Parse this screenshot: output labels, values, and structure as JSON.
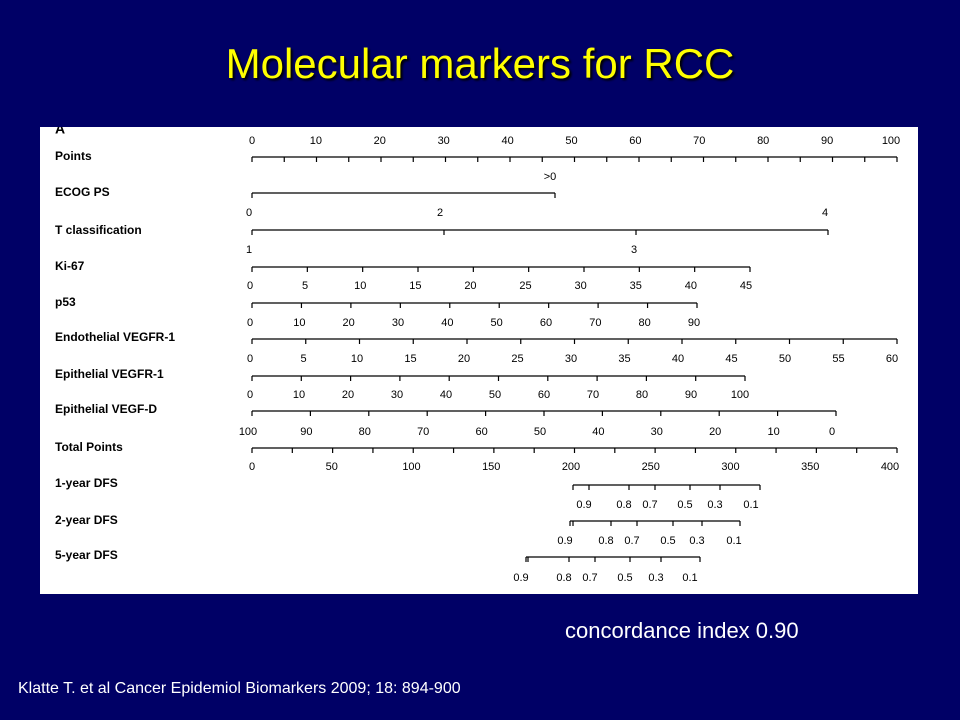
{
  "title": "Molecular markers for RCC",
  "figure": {
    "panel_letter": "A",
    "row_labels": [
      "Points",
      "ECOG PS",
      "T classification",
      "Ki-67",
      "p53",
      "Endothelial VEGFR-1",
      "Epithelial VEGFR-1",
      "Epithelial VEGF-D",
      "Total Points",
      "1-year DFS",
      "2-year DFS",
      "5-year DFS"
    ],
    "scale_labels": [
      [
        "0",
        "10",
        "20",
        "30",
        "40",
        "50",
        "60",
        "70",
        "80",
        "90",
        "100"
      ],
      [
        ">0"
      ],
      [
        "0",
        "2",
        "4"
      ],
      [
        "1",
        "3"
      ],
      [
        "0",
        "5",
        "10",
        "15",
        "20",
        "25",
        "30",
        "35",
        "40",
        "45"
      ],
      [
        "0",
        "10",
        "20",
        "30",
        "40",
        "50",
        "60",
        "70",
        "80",
        "90"
      ],
      [
        "0",
        "5",
        "10",
        "15",
        "20",
        "25",
        "30",
        "35",
        "40",
        "45",
        "50",
        "55",
        "60"
      ],
      [
        "0",
        "10",
        "20",
        "30",
        "40",
        "50",
        "60",
        "70",
        "80",
        "90",
        "100"
      ],
      [
        "100",
        "90",
        "80",
        "70",
        "60",
        "50",
        "40",
        "30",
        "20",
        "10",
        "0"
      ],
      [
        "0",
        "50",
        "100",
        "150",
        "200",
        "250",
        "300",
        "350",
        "400"
      ],
      [
        "0.9",
        "0.8",
        "0.7",
        "0.5",
        "0.3",
        "0.1"
      ],
      [
        "0.9",
        "0.8",
        "0.7",
        "0.5",
        "0.3",
        "0.1"
      ],
      [
        "0.9",
        "0.8",
        "0.7",
        "0.5",
        "0.3",
        "0.1"
      ]
    ]
  },
  "concordance": "concordance index 0.90",
  "citation": "Klatte T. et al Cancer Epidemiol Biomarkers 2009; 18: 894-900"
}
